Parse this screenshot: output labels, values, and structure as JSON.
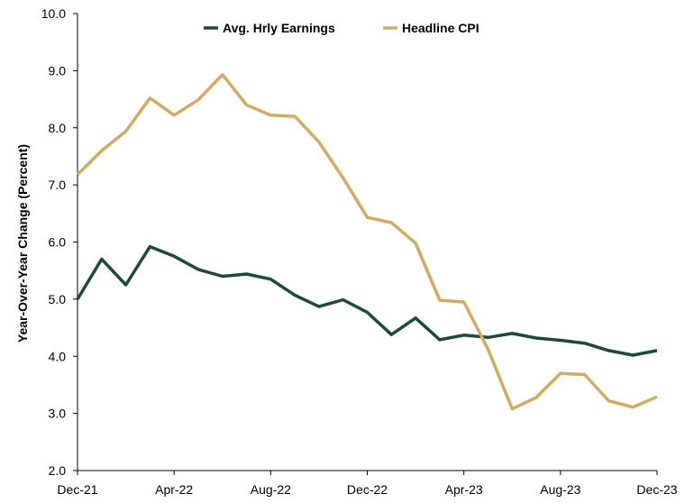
{
  "chart_data": {
    "type": "line",
    "ylabel": "Year-Over-Year Change (Percent)",
    "xlabel": "",
    "ylim": [
      2.0,
      10.0
    ],
    "yticks": [
      "2.0",
      "3.0",
      "4.0",
      "5.0",
      "6.0",
      "7.0",
      "8.0",
      "9.0",
      "10.0"
    ],
    "x": [
      "Dec-21",
      "Jan-22",
      "Feb-22",
      "Mar-22",
      "Apr-22",
      "May-22",
      "Jun-22",
      "Jul-22",
      "Aug-22",
      "Sep-22",
      "Oct-22",
      "Nov-22",
      "Dec-22",
      "Jan-23",
      "Feb-23",
      "Mar-23",
      "Apr-23",
      "May-23",
      "Jun-23",
      "Jul-23",
      "Aug-23",
      "Sep-23",
      "Oct-23",
      "Nov-23",
      "Dec-23"
    ],
    "xtick_labels": [
      "Dec-21",
      "Apr-22",
      "Aug-22",
      "Dec-22",
      "Apr-23",
      "Aug-23",
      "Dec-23"
    ],
    "legend_position": "top-center",
    "grid": false,
    "series": [
      {
        "name": "Avg. Hrly Earnings",
        "color": "#1a4a3a",
        "values": [
          5.0,
          5.7,
          5.25,
          5.92,
          5.75,
          5.52,
          5.4,
          5.44,
          5.35,
          5.07,
          4.87,
          4.99,
          4.77,
          4.38,
          4.67,
          4.29,
          4.37,
          4.33,
          4.4,
          4.32,
          4.28,
          4.23,
          4.1,
          4.02,
          4.1
        ]
      },
      {
        "name": "Headline CPI",
        "color": "#d4aa5c",
        "values": [
          7.18,
          7.6,
          7.94,
          8.52,
          8.22,
          8.49,
          8.93,
          8.4,
          8.22,
          8.2,
          7.75,
          7.12,
          6.43,
          6.34,
          5.98,
          4.98,
          4.95,
          4.12,
          3.08,
          3.28,
          3.7,
          3.68,
          3.22,
          3.11,
          3.29
        ]
      }
    ]
  }
}
